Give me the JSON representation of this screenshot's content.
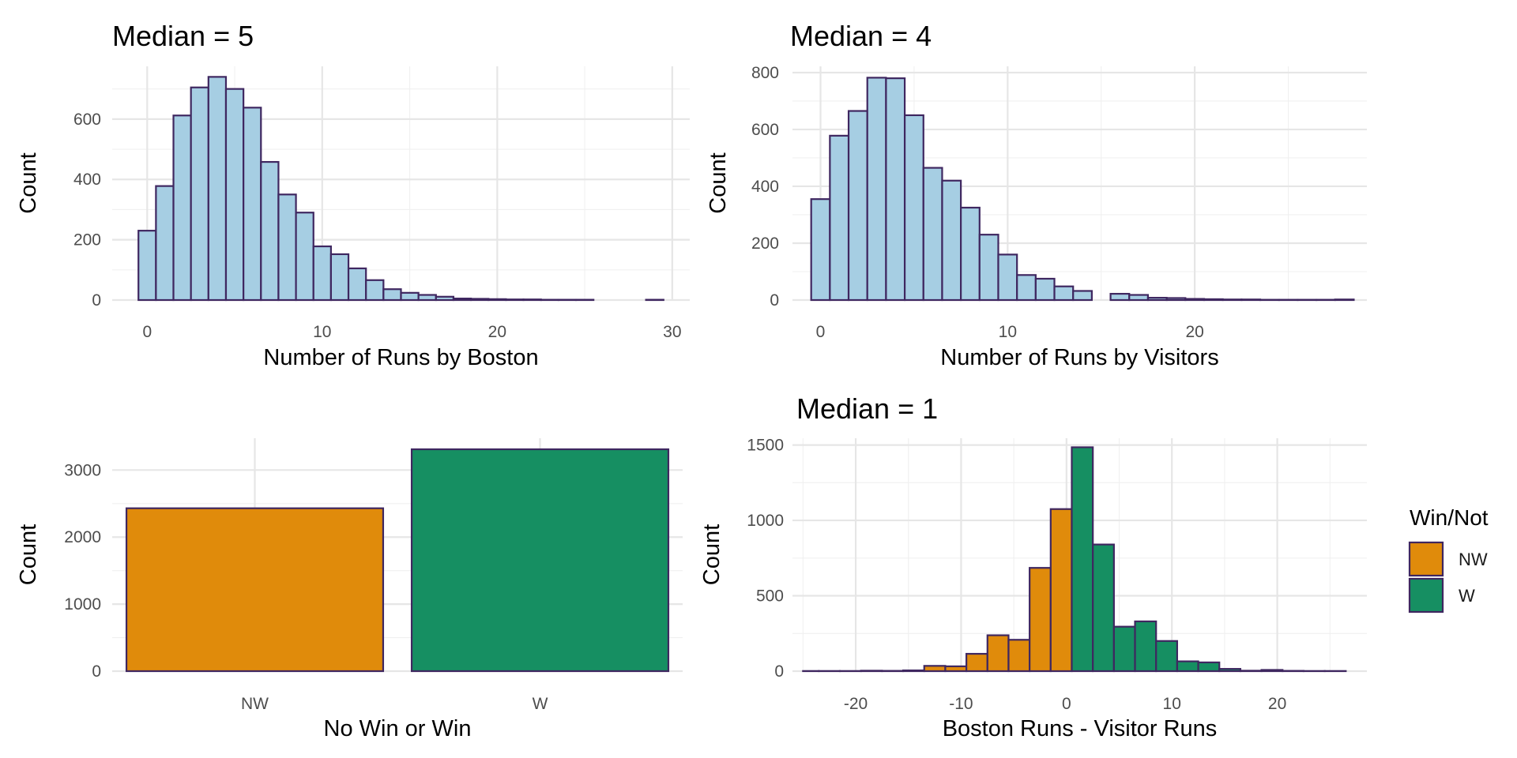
{
  "chart_data": [
    {
      "type": "histogram",
      "title": "Median = 5",
      "xlabel": "Number of Runs by Boston",
      "ylabel": "Count",
      "xlim": [
        -2,
        31
      ],
      "ylim": [
        0,
        775
      ],
      "xticks": [
        0,
        10,
        20,
        30
      ],
      "yticks": [
        0,
        200,
        400,
        600
      ],
      "grid": true,
      "bar_fill": "#a6cee3",
      "bar_outline": "#3f2760",
      "bins": [
        {
          "x0": -0.5,
          "x1": 0.5,
          "count": 230
        },
        {
          "x0": 0.5,
          "x1": 1.5,
          "count": 378
        },
        {
          "x0": 1.5,
          "x1": 2.5,
          "count": 612
        },
        {
          "x0": 2.5,
          "x1": 3.5,
          "count": 705
        },
        {
          "x0": 3.5,
          "x1": 4.5,
          "count": 740
        },
        {
          "x0": 4.5,
          "x1": 5.5,
          "count": 700
        },
        {
          "x0": 5.5,
          "x1": 6.5,
          "count": 638
        },
        {
          "x0": 6.5,
          "x1": 7.5,
          "count": 458
        },
        {
          "x0": 7.5,
          "x1": 8.5,
          "count": 350
        },
        {
          "x0": 8.5,
          "x1": 9.5,
          "count": 290
        },
        {
          "x0": 9.5,
          "x1": 10.5,
          "count": 178
        },
        {
          "x0": 10.5,
          "x1": 11.5,
          "count": 152
        },
        {
          "x0": 11.5,
          "x1": 12.5,
          "count": 105
        },
        {
          "x0": 12.5,
          "x1": 13.5,
          "count": 66
        },
        {
          "x0": 13.5,
          "x1": 14.5,
          "count": 36
        },
        {
          "x0": 14.5,
          "x1": 15.5,
          "count": 24
        },
        {
          "x0": 15.5,
          "x1": 16.5,
          "count": 17
        },
        {
          "x0": 16.5,
          "x1": 17.5,
          "count": 11
        },
        {
          "x0": 17.5,
          "x1": 18.5,
          "count": 5
        },
        {
          "x0": 18.5,
          "x1": 19.5,
          "count": 4
        },
        {
          "x0": 19.5,
          "x1": 20.5,
          "count": 3
        },
        {
          "x0": 20.5,
          "x1": 21.5,
          "count": 2
        },
        {
          "x0": 21.5,
          "x1": 22.5,
          "count": 2
        },
        {
          "x0": 22.5,
          "x1": 23.5,
          "count": 1
        },
        {
          "x0": 23.5,
          "x1": 24.5,
          "count": 1
        },
        {
          "x0": 24.5,
          "x1": 25.5,
          "count": 1
        },
        {
          "x0": 25.5,
          "x1": 26.5,
          "count": 0
        },
        {
          "x0": 26.5,
          "x1": 27.5,
          "count": 0
        },
        {
          "x0": 27.5,
          "x1": 28.5,
          "count": 0
        },
        {
          "x0": 28.5,
          "x1": 29.5,
          "count": 1
        }
      ]
    },
    {
      "type": "histogram",
      "title": "Median = 4",
      "xlabel": "Number of Runs by Visitors",
      "ylabel": "Count",
      "xlim": [
        -1.5,
        29.2
      ],
      "ylim": [
        0,
        822
      ],
      "xticks": [
        0,
        10,
        20
      ],
      "yticks": [
        0,
        200,
        400,
        600,
        800
      ],
      "grid": true,
      "bar_fill": "#a6cee3",
      "bar_outline": "#3f2760",
      "bins": [
        {
          "x0": -0.5,
          "x1": 0.5,
          "count": 355
        },
        {
          "x0": 0.5,
          "x1": 1.5,
          "count": 578
        },
        {
          "x0": 1.5,
          "x1": 2.5,
          "count": 665
        },
        {
          "x0": 2.5,
          "x1": 3.5,
          "count": 782
        },
        {
          "x0": 3.5,
          "x1": 4.5,
          "count": 780
        },
        {
          "x0": 4.5,
          "x1": 5.5,
          "count": 650
        },
        {
          "x0": 5.5,
          "x1": 6.5,
          "count": 465
        },
        {
          "x0": 6.5,
          "x1": 7.5,
          "count": 420
        },
        {
          "x0": 7.5,
          "x1": 8.5,
          "count": 325
        },
        {
          "x0": 8.5,
          "x1": 9.5,
          "count": 230
        },
        {
          "x0": 9.5,
          "x1": 10.5,
          "count": 160
        },
        {
          "x0": 10.5,
          "x1": 11.5,
          "count": 88
        },
        {
          "x0": 11.5,
          "x1": 12.5,
          "count": 75
        },
        {
          "x0": 12.5,
          "x1": 13.5,
          "count": 48
        },
        {
          "x0": 13.5,
          "x1": 14.5,
          "count": 32
        },
        {
          "x0": 14.5,
          "x1": 15.5,
          "count": 0
        },
        {
          "x0": 15.5,
          "x1": 16.5,
          "count": 22
        },
        {
          "x0": 16.5,
          "x1": 17.5,
          "count": 18
        },
        {
          "x0": 17.5,
          "x1": 18.5,
          "count": 8
        },
        {
          "x0": 18.5,
          "x1": 19.5,
          "count": 7
        },
        {
          "x0": 19.5,
          "x1": 20.5,
          "count": 4
        },
        {
          "x0": 20.5,
          "x1": 21.5,
          "count": 3
        },
        {
          "x0": 21.5,
          "x1": 22.5,
          "count": 2
        },
        {
          "x0": 22.5,
          "x1": 23.5,
          "count": 2
        },
        {
          "x0": 23.5,
          "x1": 24.5,
          "count": 1
        },
        {
          "x0": 24.5,
          "x1": 25.5,
          "count": 1
        },
        {
          "x0": 25.5,
          "x1": 26.5,
          "count": 1
        },
        {
          "x0": 26.5,
          "x1": 27.5,
          "count": 1
        },
        {
          "x0": 27.5,
          "x1": 28.5,
          "count": 2
        }
      ]
    },
    {
      "type": "bar",
      "title": "",
      "xlabel": "No Win or Win",
      "ylabel": "Count",
      "categories": [
        "NW",
        "W"
      ],
      "values": [
        2430,
        3310
      ],
      "colors": [
        "#e08b0b",
        "#168f62"
      ],
      "ylim": [
        0,
        3475
      ],
      "yticks": [
        0,
        1000,
        2000,
        3000
      ],
      "grid": true,
      "bar_outline": "#3f2760"
    },
    {
      "type": "histogram",
      "title": "Median = 1",
      "xlabel": "Boston Runs - Visitor Runs",
      "ylabel": "Count",
      "xlim": [
        -26,
        28.5
      ],
      "ylim": [
        0,
        1545
      ],
      "xticks": [
        -20,
        -10,
        0,
        10,
        20
      ],
      "yticks": [
        0,
        500,
        1000,
        1500
      ],
      "grid": true,
      "bar_outline": "#3f2760",
      "legend": {
        "title": "Win/Not",
        "position": "right",
        "entries": [
          {
            "label": "NW",
            "color": "#e08b0b"
          },
          {
            "label": "W",
            "color": "#168f62"
          }
        ]
      },
      "series": [
        {
          "name": "NW",
          "color": "#e08b0b",
          "bins": [
            {
              "x0": -25,
              "x1": -23.5,
              "count": 1
            },
            {
              "x0": -23.5,
              "x1": -21.5,
              "count": 1
            },
            {
              "x0": -21.5,
              "x1": -19.5,
              "count": 1
            },
            {
              "x0": -19.5,
              "x1": -17.5,
              "count": 3
            },
            {
              "x0": -17.5,
              "x1": -15.5,
              "count": 2
            },
            {
              "x0": -15.5,
              "x1": -13.5,
              "count": 5
            },
            {
              "x0": -13.5,
              "x1": -11.5,
              "count": 35
            },
            {
              "x0": -11.5,
              "x1": -9.5,
              "count": 32
            },
            {
              "x0": -9.5,
              "x1": -7.5,
              "count": 115
            },
            {
              "x0": -7.5,
              "x1": -5.5,
              "count": 238
            },
            {
              "x0": -5.5,
              "x1": -3.5,
              "count": 208
            },
            {
              "x0": -3.5,
              "x1": -1.5,
              "count": 685
            },
            {
              "x0": -1.5,
              "x1": 0.5,
              "count": 1075
            }
          ]
        },
        {
          "name": "W",
          "color": "#168f62",
          "bins": [
            {
              "x0": 0.5,
              "x1": 2.5,
              "count": 1485
            },
            {
              "x0": 2.5,
              "x1": 4.5,
              "count": 840
            },
            {
              "x0": 4.5,
              "x1": 6.5,
              "count": 295
            },
            {
              "x0": 6.5,
              "x1": 8.5,
              "count": 330
            },
            {
              "x0": 8.5,
              "x1": 10.5,
              "count": 200
            },
            {
              "x0": 10.5,
              "x1": 12.5,
              "count": 65
            },
            {
              "x0": 12.5,
              "x1": 14.5,
              "count": 58
            },
            {
              "x0": 14.5,
              "x1": 16.5,
              "count": 15
            },
            {
              "x0": 16.5,
              "x1": 18.5,
              "count": 3
            },
            {
              "x0": 18.5,
              "x1": 20.5,
              "count": 8
            },
            {
              "x0": 20.5,
              "x1": 22.5,
              "count": 2
            },
            {
              "x0": 22.5,
              "x1": 24.5,
              "count": 1
            },
            {
              "x0": 24.5,
              "x1": 26.5,
              "count": 1
            }
          ]
        }
      ]
    }
  ]
}
